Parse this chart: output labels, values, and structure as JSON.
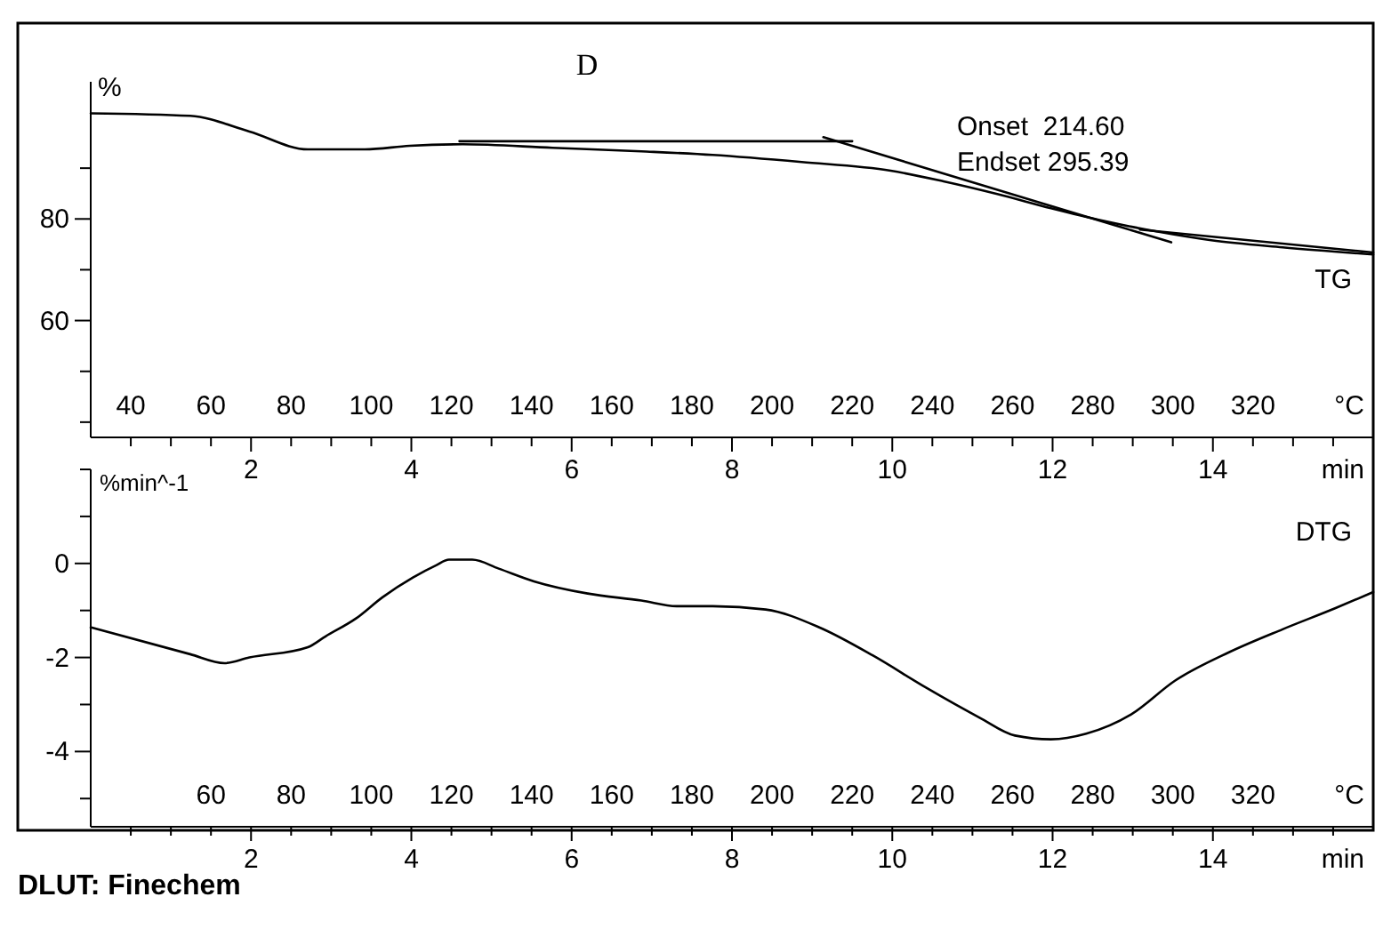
{
  "chart_data": [
    {
      "type": "line",
      "title": "D",
      "ylabel": "%",
      "xlabel": "min",
      "x2label": "°C",
      "xlim": [
        0,
        16
      ],
      "xticks": [
        {
          "value": 0.5,
          "label": null
        },
        {
          "value": 1,
          "label": null
        },
        {
          "value": 1.5,
          "label": null
        },
        2,
        {
          "value": 2.5,
          "label": null
        },
        {
          "value": 3,
          "label": null
        },
        {
          "value": 3.5,
          "label": null
        },
        4,
        {
          "value": 4.5,
          "label": null
        },
        {
          "value": 5,
          "label": null
        },
        {
          "value": 5.5,
          "label": null
        },
        6,
        {
          "value": 6.5,
          "label": null
        },
        {
          "value": 7,
          "label": null
        },
        {
          "value": 7.5,
          "label": null
        },
        8,
        {
          "value": 8.5,
          "label": null
        },
        {
          "value": 9,
          "label": null
        },
        {
          "value": 9.5,
          "label": null
        },
        10,
        {
          "value": 10.5,
          "label": null
        },
        {
          "value": 11,
          "label": null
        },
        {
          "value": 11.5,
          "label": null
        },
        12,
        {
          "value": 12.5,
          "label": null
        },
        {
          "value": 13,
          "label": null
        },
        {
          "value": 13.5,
          "label": null
        },
        14,
        {
          "value": 14.5,
          "label": null
        },
        {
          "value": 15,
          "label": null
        },
        {
          "value": 15.5,
          "label": null
        }
      ],
      "x2lim": [
        30,
        350
      ],
      "x2ticks": [
        40,
        60,
        80,
        100,
        120,
        140,
        160,
        180,
        200,
        220,
        240,
        260,
        280,
        300,
        320
      ],
      "ylim": [
        37,
        107
      ],
      "yticks": [
        {
          "value": 40,
          "label": null
        },
        {
          "value": 50,
          "label": null
        },
        60,
        {
          "value": 70,
          "label": null
        },
        80,
        {
          "value": 90,
          "label": null
        }
      ],
      "annotations": [
        "Onset  214.60",
        "Endset 295.39"
      ],
      "series": [
        {
          "name": "TG",
          "color": "#000000",
          "x": [
            0,
            1.24,
            1.98,
            2.71,
            3.42,
            3.98,
            4.64,
            5.76,
            6.87,
            7.76,
            8.87,
            9.98,
            10.64,
            11.31,
            11.98,
            12.64,
            13.31,
            13.98,
            14.87,
            16
          ],
          "values": [
            100.8,
            100.3,
            97.2,
            93.7,
            93.7,
            94.4,
            94.7,
            94.0,
            93.3,
            92.6,
            91.2,
            89.5,
            87.4,
            84.9,
            82.1,
            79.6,
            77.5,
            75.8,
            74.4,
            73.0
          ]
        },
        {
          "color": "#000000",
          "x": [
            4.6,
            9.5
          ],
          "values": [
            95.3,
            95.3
          ]
        },
        {
          "color": "#000000",
          "x": [
            9.14,
            13.48
          ],
          "values": [
            96.1,
            75.4
          ]
        },
        {
          "color": "#000000",
          "x": [
            13.09,
            16
          ],
          "values": [
            77.9,
            73.4
          ]
        }
      ]
    },
    {
      "type": "line",
      "ylabel": "%min^-1",
      "xlabel": "min",
      "x2label": "°C",
      "xlim": [
        0,
        16
      ],
      "xticks": [
        {
          "value": 0.5,
          "label": null
        },
        {
          "value": 1,
          "label": null
        },
        {
          "value": 1.5,
          "label": null
        },
        2,
        {
          "value": 2.5,
          "label": null
        },
        {
          "value": 3,
          "label": null
        },
        {
          "value": 3.5,
          "label": null
        },
        4,
        {
          "value": 4.5,
          "label": null
        },
        {
          "value": 5,
          "label": null
        },
        {
          "value": 5.5,
          "label": null
        },
        6,
        {
          "value": 6.5,
          "label": null
        },
        {
          "value": 7,
          "label": null
        },
        {
          "value": 7.5,
          "label": null
        },
        8,
        {
          "value": 8.5,
          "label": null
        },
        {
          "value": 9,
          "label": null
        },
        {
          "value": 9.5,
          "label": null
        },
        10,
        {
          "value": 10.5,
          "label": null
        },
        {
          "value": 11,
          "label": null
        },
        {
          "value": 11.5,
          "label": null
        },
        12,
        {
          "value": 12.5,
          "label": null
        },
        {
          "value": 13,
          "label": null
        },
        {
          "value": 13.5,
          "label": null
        },
        14,
        {
          "value": 14.5,
          "label": null
        },
        {
          "value": 15,
          "label": null
        },
        {
          "value": 15.5,
          "label": null
        }
      ],
      "x2lim": [
        30,
        350
      ],
      "x2ticks": [
        60,
        80,
        100,
        120,
        140,
        160,
        180,
        200,
        220,
        240,
        260,
        280,
        300,
        320
      ],
      "ylim": [
        -5.6,
        2
      ],
      "yticks": [
        {
          "value": 2,
          "label": null
        },
        {
          "value": 1,
          "label": null
        },
        0,
        {
          "value": -1,
          "label": null
        },
        -2,
        {
          "value": -3,
          "label": null
        },
        -4,
        {
          "value": -5,
          "label": null
        }
      ],
      "annotations": [
        "DLUT: Finechem"
      ],
      "series": [
        {
          "name": "DTG",
          "color": "#000000",
          "x": [
            0,
            1.24,
            1.67,
            1.98,
            2.71,
            2.93,
            3.31,
            3.64,
            4.02,
            4.31,
            4.47,
            4.76,
            5.09,
            5.53,
            6.2,
            6.87,
            7.31,
            7.76,
            8.42,
            9.09,
            9.76,
            10.42,
            11.09,
            11.53,
            11.98,
            12.42,
            12.98,
            13.53,
            14.2,
            14.87,
            15.53,
            16
          ],
          "values": [
            -1.36,
            -1.93,
            -2.12,
            -2.0,
            -1.78,
            -1.55,
            -1.17,
            -0.72,
            -0.3,
            -0.04,
            0.08,
            0.08,
            -0.11,
            -0.38,
            -0.64,
            -0.79,
            -0.91,
            -0.91,
            -0.98,
            -1.36,
            -1.96,
            -2.64,
            -3.28,
            -3.66,
            -3.74,
            -3.62,
            -3.21,
            -2.49,
            -1.89,
            -1.4,
            -0.95,
            -0.61
          ]
        }
      ]
    }
  ]
}
